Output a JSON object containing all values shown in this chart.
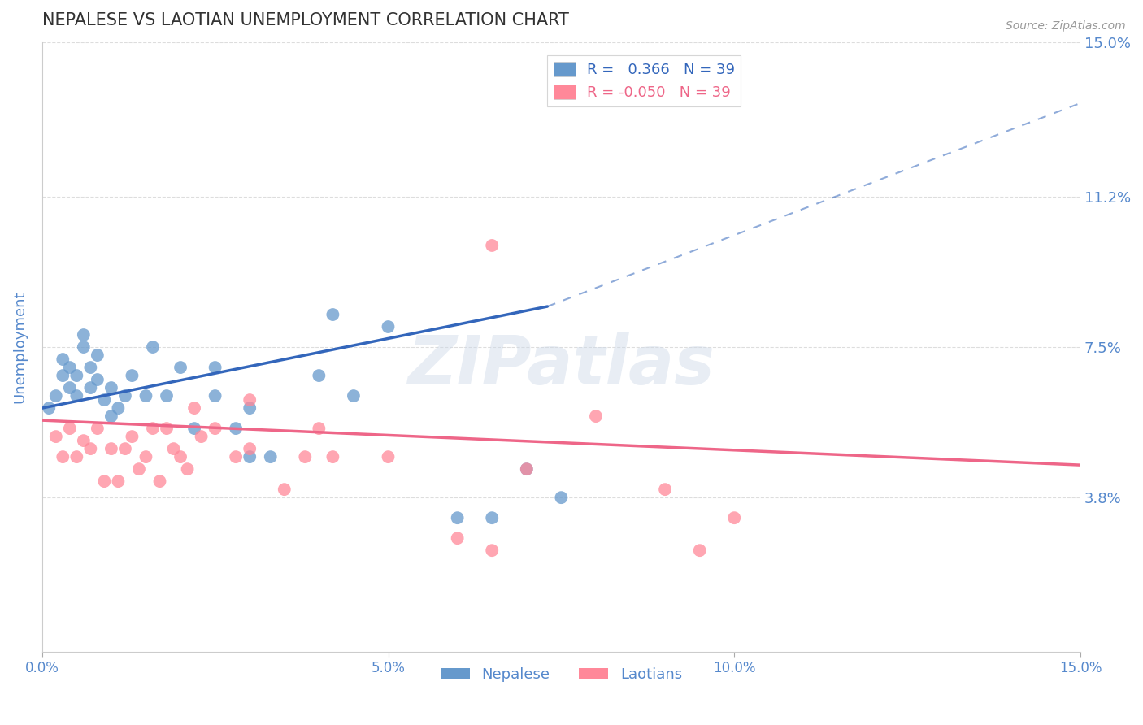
{
  "title": "NEPALESE VS LAOTIAN UNEMPLOYMENT CORRELATION CHART",
  "source": "Source: ZipAtlas.com",
  "ylabel": "Unemployment",
  "xmin": 0.0,
  "xmax": 0.15,
  "ymin": 0.0,
  "ymax": 0.15,
  "yticks": [
    0.038,
    0.075,
    0.112,
    0.15
  ],
  "ytick_labels": [
    "3.8%",
    "7.5%",
    "11.2%",
    "15.0%"
  ],
  "xticks": [
    0.0,
    0.05,
    0.1,
    0.15
  ],
  "xtick_labels": [
    "0.0%",
    "5.0%",
    "10.0%",
    "15.0%"
  ],
  "r_nepalese": 0.366,
  "r_laotians": -0.05,
  "n_nepalese": 39,
  "n_laotians": 39,
  "nepalese_color": "#6699CC",
  "laotians_color": "#FF8899",
  "nepalese_line_color": "#3366BB",
  "laotians_line_color": "#EE6688",
  "background_color": "#ffffff",
  "grid_color": "#dddddd",
  "title_color": "#333333",
  "axis_label_color": "#5588cc",
  "watermark": "ZIPatlas",
  "nep_line_start_x": 0.0,
  "nep_line_start_y": 0.06,
  "nep_line_solid_end_x": 0.073,
  "nep_line_solid_end_y": 0.085,
  "nep_line_dash_end_x": 0.15,
  "nep_line_dash_end_y": 0.135,
  "lao_line_start_x": 0.0,
  "lao_line_start_y": 0.057,
  "lao_line_end_x": 0.15,
  "lao_line_end_y": 0.046,
  "nepalese_x": [
    0.001,
    0.002,
    0.003,
    0.003,
    0.004,
    0.004,
    0.005,
    0.005,
    0.006,
    0.006,
    0.007,
    0.007,
    0.008,
    0.008,
    0.009,
    0.01,
    0.01,
    0.011,
    0.012,
    0.013,
    0.015,
    0.016,
    0.018,
    0.02,
    0.022,
    0.025,
    0.025,
    0.028,
    0.03,
    0.033,
    0.04,
    0.042,
    0.05,
    0.06,
    0.065,
    0.07,
    0.075,
    0.03,
    0.045
  ],
  "nepalese_y": [
    0.06,
    0.063,
    0.068,
    0.072,
    0.065,
    0.07,
    0.063,
    0.068,
    0.075,
    0.078,
    0.065,
    0.07,
    0.073,
    0.067,
    0.062,
    0.058,
    0.065,
    0.06,
    0.063,
    0.068,
    0.063,
    0.075,
    0.063,
    0.07,
    0.055,
    0.063,
    0.07,
    0.055,
    0.048,
    0.048,
    0.068,
    0.083,
    0.08,
    0.033,
    0.033,
    0.045,
    0.038,
    0.06,
    0.063
  ],
  "laotians_x": [
    0.002,
    0.003,
    0.004,
    0.005,
    0.006,
    0.007,
    0.008,
    0.009,
    0.01,
    0.011,
    0.012,
    0.013,
    0.014,
    0.015,
    0.016,
    0.017,
    0.018,
    0.019,
    0.02,
    0.021,
    0.022,
    0.023,
    0.025,
    0.028,
    0.03,
    0.03,
    0.035,
    0.038,
    0.04,
    0.042,
    0.05,
    0.06,
    0.065,
    0.07,
    0.08,
    0.09,
    0.095,
    0.1,
    0.065
  ],
  "laotians_y": [
    0.053,
    0.048,
    0.055,
    0.048,
    0.052,
    0.05,
    0.055,
    0.042,
    0.05,
    0.042,
    0.05,
    0.053,
    0.045,
    0.048,
    0.055,
    0.042,
    0.055,
    0.05,
    0.048,
    0.045,
    0.06,
    0.053,
    0.055,
    0.048,
    0.062,
    0.05,
    0.04,
    0.048,
    0.055,
    0.048,
    0.048,
    0.028,
    0.025,
    0.045,
    0.058,
    0.04,
    0.025,
    0.033,
    0.1
  ]
}
